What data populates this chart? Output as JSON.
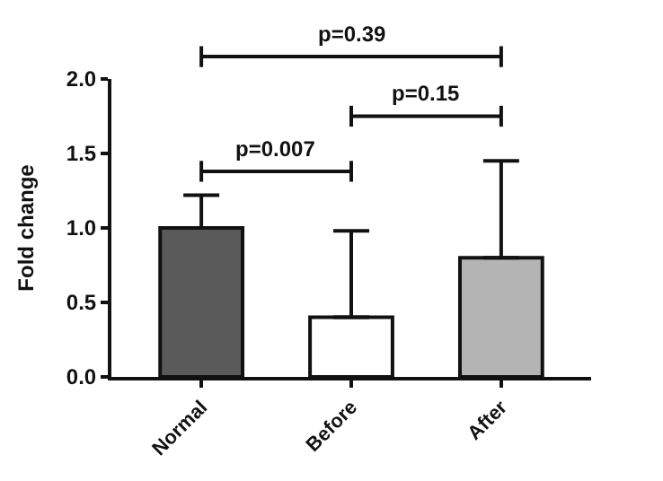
{
  "chart_data": {
    "type": "bar",
    "ylabel": "Fold change",
    "categories": [
      "Normal",
      "Before",
      "After"
    ],
    "values": [
      1.0,
      0.4,
      0.8
    ],
    "colors": [
      "#5a5a5a",
      "#ffffff",
      "#b4b4b4"
    ],
    "errors": [
      [
        1.0,
        1.22
      ],
      [
        0.4,
        0.98
      ],
      [
        0.8,
        1.45
      ]
    ],
    "ylim": [
      0,
      2.0
    ],
    "yticks": [
      {
        "value": 0,
        "label": "0.0"
      },
      {
        "value": 0.5,
        "label": "0.5"
      },
      {
        "value": 1.0,
        "label": "1.0"
      },
      {
        "value": 1.5,
        "label": "1.5"
      },
      {
        "value": 2.0,
        "label": "2.0"
      }
    ],
    "annotations": [
      "p=0.39",
      "p=0.15",
      "p=0.007"
    ],
    "legend": false
  }
}
